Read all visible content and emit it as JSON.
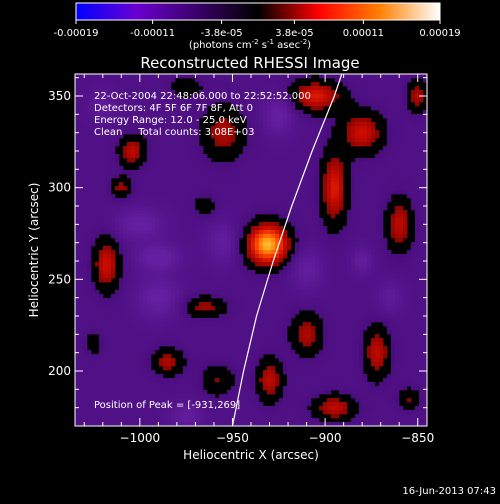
{
  "colorbar": {
    "ticks": [
      "-0.00019",
      "-0.00011",
      "-3.8e-05",
      "3.8e-05",
      "0.00011",
      "0.00019"
    ],
    "tick_values": [
      -0.00019,
      -0.00011,
      -3.8e-05,
      3.8e-05,
      0.00011,
      0.00019
    ],
    "range": [
      -0.00019,
      0.00019
    ],
    "units_prefix": "(photons cm",
    "units_exp1": "-2",
    "units_mid": " s",
    "units_exp2": "-1",
    "units_mid2": " asec",
    "units_exp3": "-2",
    "units_suffix": ")",
    "colors": [
      "#0000ff",
      "#6a00d0",
      "#3a006a",
      "#000000",
      "#ff0000",
      "#ff8000",
      "#ffffff"
    ]
  },
  "footer": {
    "date": "16-Jun-2013 07:43"
  },
  "chart_data": {
    "type": "heatmap",
    "title": "Reconstructed RHESSI Image",
    "xlabel": "Heliocentric X (arcsec)",
    "ylabel": "Heliocentric Y (arcsec)",
    "xlim": [
      -1035,
      -845
    ],
    "ylim": [
      170,
      362
    ],
    "xticks": [
      -1000,
      -950,
      -900,
      -850
    ],
    "xtick_labels": [
      "−1000",
      "−950",
      "−900",
      "−850"
    ],
    "yticks": [
      200,
      250,
      300,
      350
    ],
    "ytick_labels": [
      "200",
      "250",
      "300",
      "350"
    ],
    "annotations": [
      "22-Oct-2004 22:48:06.000 to 22:52:52.000",
      "Detectors: 4F 5F 6F 7F 8F, Att 0",
      "Energy Range: 12.0 - 25.0 keV",
      "Clean     Total counts: 3.08E+03"
    ],
    "peak_label": "Position of Peak = [-931,269]",
    "peak": {
      "x": -931,
      "y": 269,
      "value": 0.00019
    },
    "limb": [
      [
        -950,
        170
      ],
      [
        -944,
        200
      ],
      [
        -937,
        230
      ],
      [
        -928,
        260
      ],
      [
        -918,
        290
      ],
      [
        -907,
        320
      ],
      [
        -895,
        350
      ],
      [
        -891,
        362
      ]
    ],
    "blobs": [
      {
        "x": -931,
        "y": 269,
        "sx": 8,
        "sy": 8,
        "v": 0.00019
      },
      {
        "x": -1018,
        "y": 258,
        "sx": 5,
        "sy": 10,
        "v": 0.0001
      },
      {
        "x": -1004,
        "y": 320,
        "sx": 5,
        "sy": 6,
        "v": 9e-05
      },
      {
        "x": -1010,
        "y": 300,
        "sx": 4,
        "sy": 4,
        "v": 7e-05
      },
      {
        "x": -985,
        "y": 205,
        "sx": 6,
        "sy": 5,
        "v": 8e-05
      },
      {
        "x": -1025,
        "y": 215,
        "sx": 3,
        "sy": 4,
        "v": 5e-05
      },
      {
        "x": -965,
        "y": 235,
        "sx": 8,
        "sy": 4,
        "v": 7e-05
      },
      {
        "x": -958,
        "y": 195,
        "sx": 6,
        "sy": 6,
        "v": 6e-05
      },
      {
        "x": -930,
        "y": 195,
        "sx": 5,
        "sy": 8,
        "v": 9e-05
      },
      {
        "x": -910,
        "y": 220,
        "sx": 6,
        "sy": 8,
        "v": 8e-05
      },
      {
        "x": -895,
        "y": 180,
        "sx": 8,
        "sy": 5,
        "v": 9e-05
      },
      {
        "x": -872,
        "y": 210,
        "sx": 5,
        "sy": 10,
        "v": 9e-05
      },
      {
        "x": -855,
        "y": 185,
        "sx": 4,
        "sy": 4,
        "v": 6e-05
      },
      {
        "x": -895,
        "y": 300,
        "sx": 5,
        "sy": 14,
        "v": 0.00011
      },
      {
        "x": -880,
        "y": 330,
        "sx": 8,
        "sy": 8,
        "v": 0.0001
      },
      {
        "x": -905,
        "y": 350,
        "sx": 10,
        "sy": 6,
        "v": 0.00011
      },
      {
        "x": -860,
        "y": 280,
        "sx": 5,
        "sy": 10,
        "v": 9e-05
      },
      {
        "x": -850,
        "y": 350,
        "sx": 4,
        "sy": 6,
        "v": 8e-05
      },
      {
        "x": -955,
        "y": 330,
        "sx": 8,
        "sy": 10,
        "v": 8e-05
      },
      {
        "x": -965,
        "y": 290,
        "sx": 4,
        "sy": 4,
        "v": 5e-05
      },
      {
        "x": -975,
        "y": 355,
        "sx": 6,
        "sy": 4,
        "v": 5e-05
      },
      {
        "x": -990,
        "y": 262,
        "sx": 8,
        "sy": 5,
        "v": -7e-05
      },
      {
        "x": -1000,
        "y": 280,
        "sx": 9,
        "sy": 6,
        "v": -6e-05
      },
      {
        "x": -990,
        "y": 240,
        "sx": 8,
        "sy": 8,
        "v": -6e-05
      },
      {
        "x": -955,
        "y": 270,
        "sx": 6,
        "sy": 8,
        "v": -5e-05
      },
      {
        "x": -975,
        "y": 175,
        "sx": 6,
        "sy": 5,
        "v": -5e-05
      },
      {
        "x": -910,
        "y": 255,
        "sx": 6,
        "sy": 8,
        "v": -5e-05
      },
      {
        "x": -880,
        "y": 260,
        "sx": 4,
        "sy": 5,
        "v": -5e-05
      },
      {
        "x": -925,
        "y": 340,
        "sx": 6,
        "sy": 8,
        "v": -6e-05
      },
      {
        "x": -1020,
        "y": 345,
        "sx": 5,
        "sy": 6,
        "v": -4e-05
      },
      {
        "x": -865,
        "y": 240,
        "sx": 5,
        "sy": 6,
        "v": -4e-05
      }
    ]
  }
}
